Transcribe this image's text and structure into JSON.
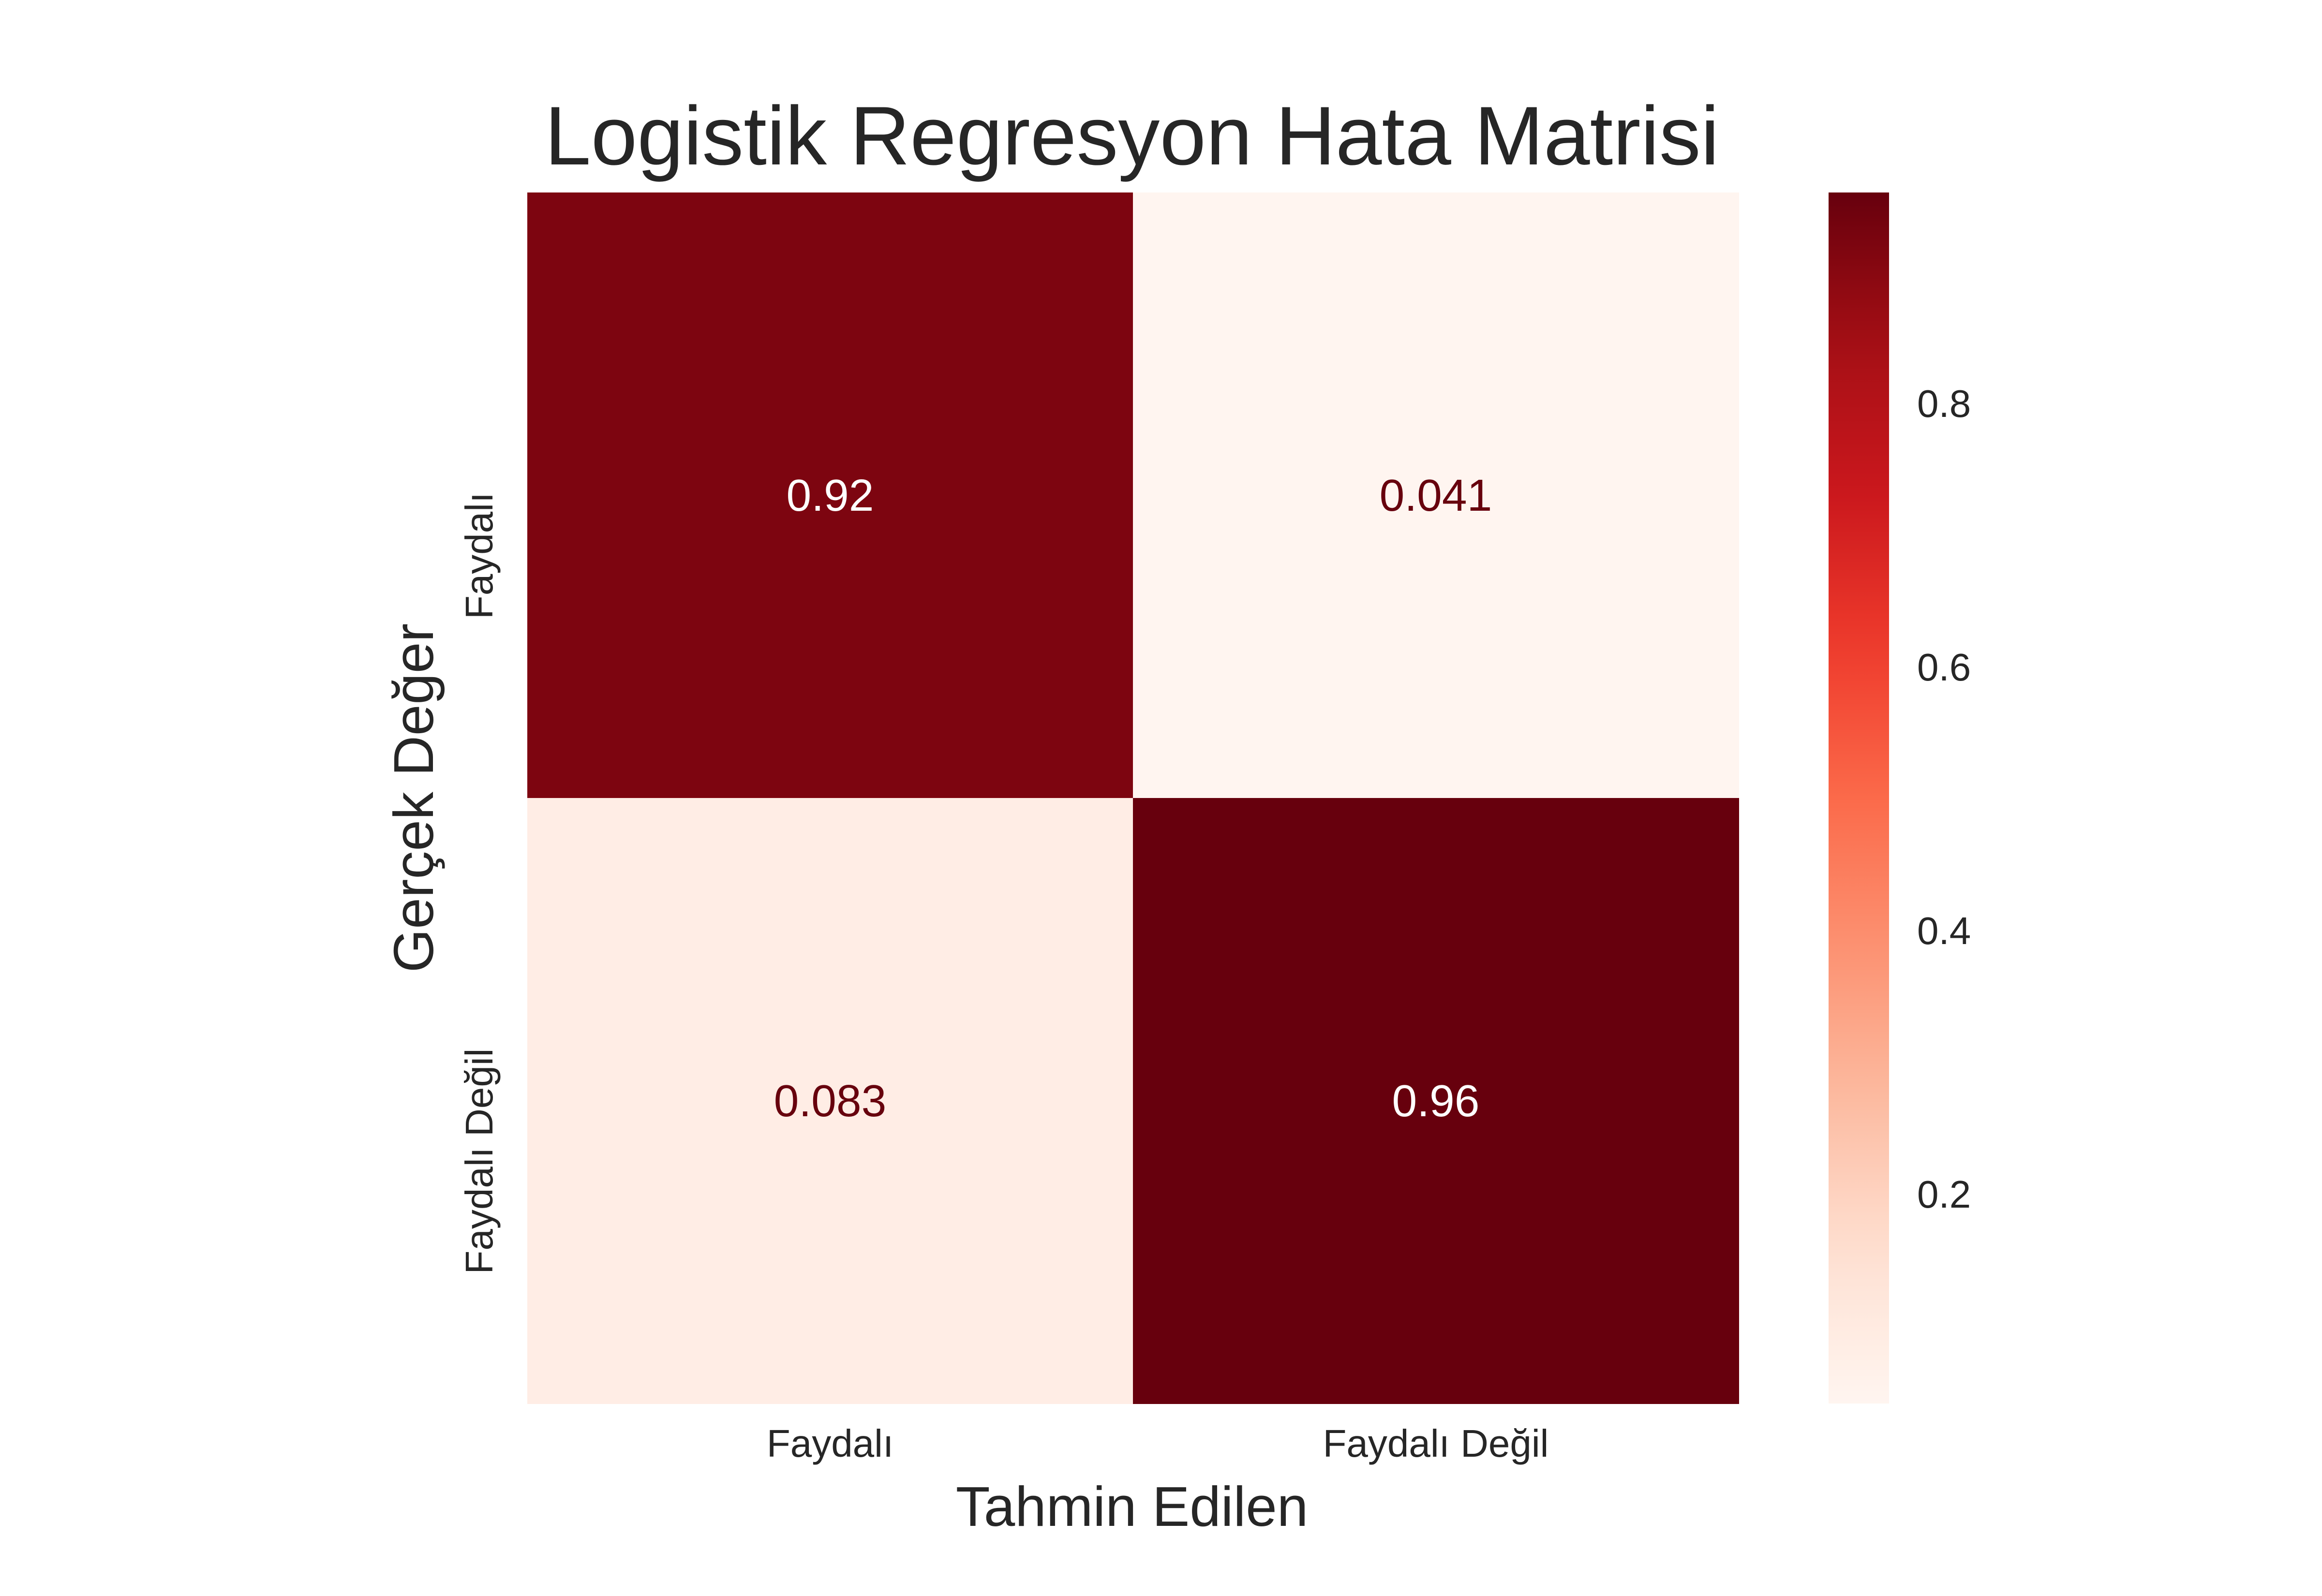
{
  "chart_data": {
    "type": "heatmap",
    "title": "Logistik Regresyon Hata Matrisi",
    "xlabel": "Tahmin Edilen",
    "ylabel": "Gerçek Değer",
    "x_categories": [
      "Faydalı",
      "Faydalı Değil"
    ],
    "y_categories": [
      "Faydalı",
      "Faydalı Değil"
    ],
    "values": [
      [
        0.92,
        0.041
      ],
      [
        0.083,
        0.96
      ]
    ],
    "value_labels": [
      [
        "0.92",
        "0.041"
      ],
      [
        "0.083",
        "0.96"
      ]
    ],
    "colormap": "Reds",
    "color_range": [
      0.041,
      0.96
    ],
    "colorbar_ticks": [
      0.2,
      0.4,
      0.6,
      0.8
    ],
    "colorbar_tick_labels": [
      "0.2",
      "0.4",
      "0.6",
      "0.8"
    ],
    "colors": {
      "light_text": "#ffffff",
      "dark_text": "#67000d"
    }
  }
}
